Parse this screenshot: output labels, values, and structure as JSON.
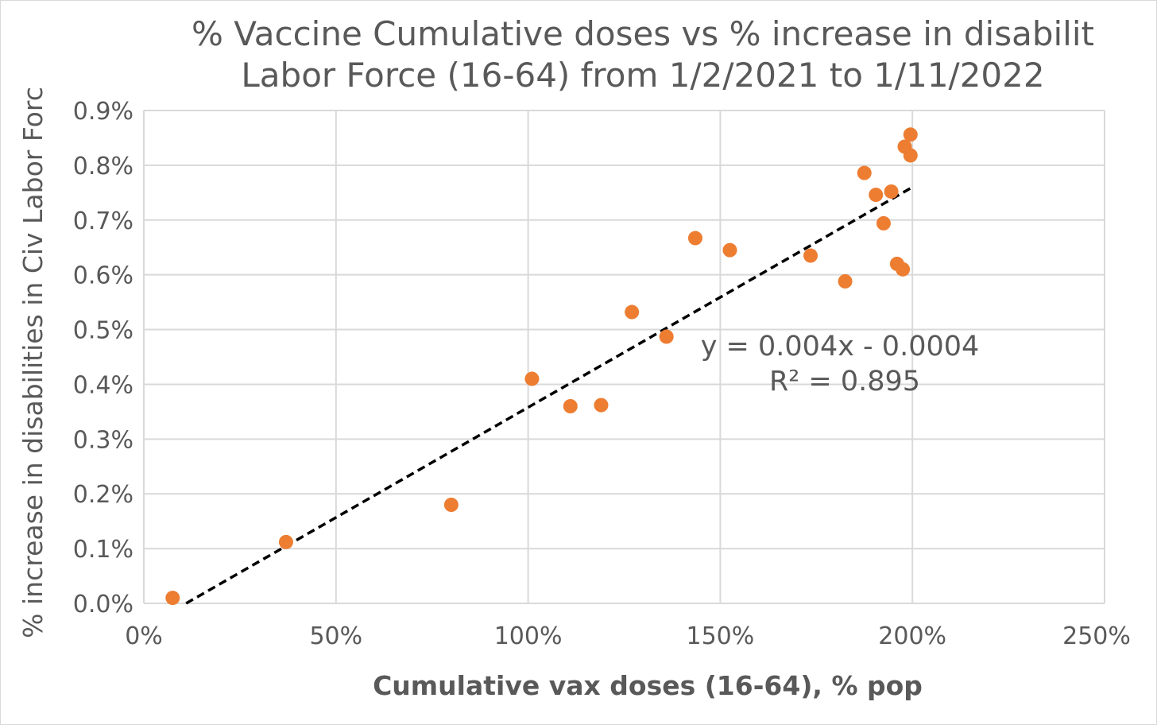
{
  "chart_data": {
    "type": "scatter",
    "title_lines": [
      "% Vaccine Cumulative doses vs % increase in disabilit",
      "Labor Force (16-64) from 1/2/2021 to 1/11/2022"
    ],
    "xlabel": "Cumulative vax doses (16-64), % pop",
    "ylabel": "% increase in disabilities in Civ Labor Forc",
    "xlim": [
      0,
      250
    ],
    "ylim": [
      0,
      0.9
    ],
    "x_ticks": [
      0,
      50,
      100,
      150,
      200,
      250
    ],
    "x_tick_labels": [
      "0%",
      "50%",
      "100%",
      "150%",
      "200%",
      "250%"
    ],
    "y_ticks": [
      0,
      0.1,
      0.2,
      0.3,
      0.4,
      0.5,
      0.6,
      0.7,
      0.8,
      0.9
    ],
    "y_tick_labels": [
      "0.0%",
      "0.1%",
      "0.2%",
      "0.3%",
      "0.4%",
      "0.5%",
      "0.6%",
      "0.7%",
      "0.8%",
      "0.9%"
    ],
    "grid": true,
    "point_color": "#ED7D31",
    "trendline_color": "#000000",
    "points": [
      {
        "x": 7.5,
        "y": 0.01
      },
      {
        "x": 37,
        "y": 0.112
      },
      {
        "x": 80,
        "y": 0.18
      },
      {
        "x": 101,
        "y": 0.41
      },
      {
        "x": 111,
        "y": 0.36
      },
      {
        "x": 119,
        "y": 0.362
      },
      {
        "x": 127,
        "y": 0.532
      },
      {
        "x": 136,
        "y": 0.487
      },
      {
        "x": 143.5,
        "y": 0.667
      },
      {
        "x": 152.5,
        "y": 0.645
      },
      {
        "x": 173.5,
        "y": 0.635
      },
      {
        "x": 182.5,
        "y": 0.588
      },
      {
        "x": 187.5,
        "y": 0.786
      },
      {
        "x": 190.5,
        "y": 0.746
      },
      {
        "x": 192.5,
        "y": 0.694
      },
      {
        "x": 194.5,
        "y": 0.752
      },
      {
        "x": 196,
        "y": 0.62
      },
      {
        "x": 197.5,
        "y": 0.61
      },
      {
        "x": 198,
        "y": 0.834
      },
      {
        "x": 199.5,
        "y": 0.818
      },
      {
        "x": 199.5,
        "y": 0.856
      }
    ],
    "trendline": {
      "type": "linear",
      "x": [
        11,
        200
      ],
      "y": [
        0,
        0.76
      ],
      "equation": "y = 0.004x - 0.0004",
      "r_squared": "R² = 0.895"
    }
  }
}
